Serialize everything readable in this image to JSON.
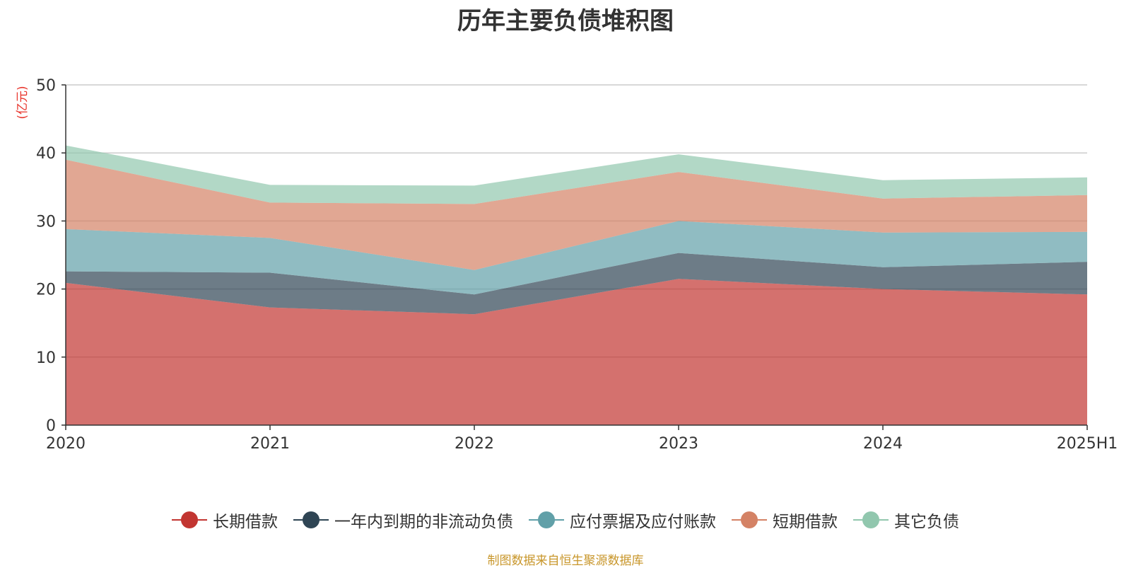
{
  "chart_data": {
    "type": "area",
    "stacked": true,
    "title": "历年主要负债堆积图",
    "ylabel": "(亿元)",
    "xlabel": "",
    "categories": [
      "2020",
      "2021",
      "2022",
      "2023",
      "2024",
      "2025H1"
    ],
    "ylim": [
      0,
      50
    ],
    "yticks": [
      0,
      10,
      20,
      30,
      40,
      50
    ],
    "grid": true,
    "legend_position": "bottom",
    "series": [
      {
        "name": "长期借款",
        "color": "#c23531",
        "values": [
          20.9,
          17.3,
          16.3,
          21.5,
          20.0,
          19.2
        ]
      },
      {
        "name": "一年内到期的非流动负债",
        "color": "#2f4554",
        "values": [
          1.7,
          5.1,
          2.9,
          3.8,
          3.2,
          4.8
        ]
      },
      {
        "name": "应付票据及应付账款",
        "color": "#61a0a8",
        "values": [
          6.2,
          5.1,
          3.6,
          4.7,
          5.1,
          4.4
        ]
      },
      {
        "name": "短期借款",
        "color": "#d48265",
        "values": [
          10.2,
          5.2,
          9.7,
          7.2,
          5.0,
          5.4
        ]
      },
      {
        "name": "其它负债",
        "color": "#91c7ae",
        "values": [
          2.1,
          2.6,
          2.7,
          2.6,
          2.7,
          2.6
        ]
      }
    ]
  },
  "source_note": "制图数据来自恒生聚源数据库"
}
